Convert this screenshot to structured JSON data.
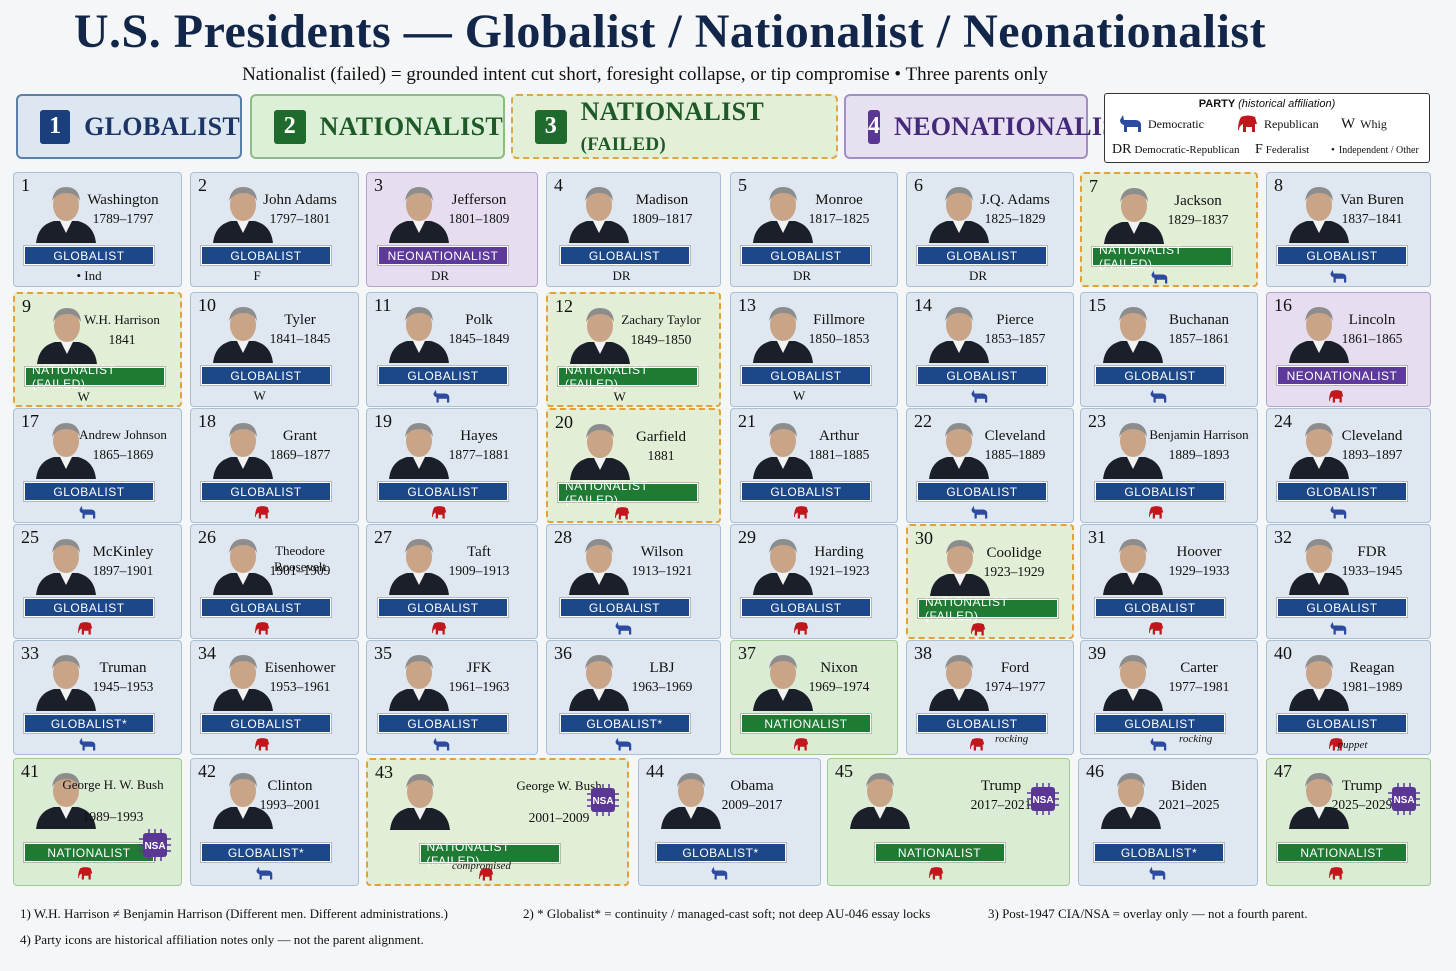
{
  "title": "U.S. Presidents — Globalist / Nationalist / Neonationalist",
  "subtitle": "Nationalist (failed) = grounded intent cut short, foresight collapse, or tip compromise  •  Three parents only",
  "categories": [
    {
      "num": "1",
      "label": "GLOBALIST"
    },
    {
      "num": "2",
      "label": "NATIONALIST"
    },
    {
      "num": "3",
      "label": "NATIONALIST",
      "label_small": "(FAILED)"
    },
    {
      "num": "4",
      "label": "NEONATIONALIST"
    }
  ],
  "legend": {
    "title": "PARTY",
    "subtitle": "(historical affiliation)",
    "democratic": "Democratic",
    "republican": "Republican",
    "whig_symbol": "W",
    "whig": "Whig",
    "dr_symbol": "DR",
    "dr": "Democratic-Republican",
    "federalist_symbol": "F",
    "federalist": "Federalist",
    "other": "Independent / Other"
  },
  "badges": {
    "glob": "GLOBALIST",
    "glob_star": "GLOBALIST*",
    "nat": "NATIONALIST",
    "natf": "NATIONALIST (FAILED)",
    "neo": "NEONATIONALIST"
  },
  "presidents": [
    {
      "n": "1",
      "name": "Washington",
      "years": "1789–1797",
      "cat": "glob",
      "party": "Ind",
      "party_text": "• Ind"
    },
    {
      "n": "2",
      "name": "John Adams",
      "years": "1797–1801",
      "cat": "glob",
      "party": "F",
      "party_text": "F"
    },
    {
      "n": "3",
      "name": "Jefferson",
      "years": "1801–1809",
      "cat": "neo",
      "party": "DR",
      "party_text": "DR"
    },
    {
      "n": "4",
      "name": "Madison",
      "years": "1809–1817",
      "cat": "glob",
      "party": "DR",
      "party_text": "DR"
    },
    {
      "n": "5",
      "name": "Monroe",
      "years": "1817–1825",
      "cat": "glob",
      "party": "DR",
      "party_text": "DR"
    },
    {
      "n": "6",
      "name": "J.Q. Adams",
      "years": "1825–1829",
      "cat": "glob",
      "party": "DR",
      "party_text": "DR"
    },
    {
      "n": "7",
      "name": "Jackson",
      "years": "1829–1837",
      "cat": "natf",
      "party": "D",
      "party_text": ""
    },
    {
      "n": "8",
      "name": "Van Buren",
      "years": "1837–1841",
      "cat": "glob",
      "party": "D",
      "party_text": ""
    },
    {
      "n": "9",
      "name": "W.H. Harrison",
      "years": "1841",
      "cat": "natf",
      "party": "W",
      "party_text": "W"
    },
    {
      "n": "10",
      "name": "Tyler",
      "years": "1841–1845",
      "cat": "glob",
      "party": "W",
      "party_text": "W"
    },
    {
      "n": "11",
      "name": "Polk",
      "years": "1845–1849",
      "cat": "glob",
      "party": "D",
      "party_text": ""
    },
    {
      "n": "12",
      "name": "Zachary Taylor",
      "years": "1849–1850",
      "cat": "natf",
      "party": "W",
      "party_text": "W"
    },
    {
      "n": "13",
      "name": "Fillmore",
      "years": "1850–1853",
      "cat": "glob",
      "party": "W",
      "party_text": "W"
    },
    {
      "n": "14",
      "name": "Pierce",
      "years": "1853–1857",
      "cat": "glob",
      "party": "D",
      "party_text": ""
    },
    {
      "n": "15",
      "name": "Buchanan",
      "years": "1857–1861",
      "cat": "glob",
      "party": "D",
      "party_text": ""
    },
    {
      "n": "16",
      "name": "Lincoln",
      "years": "1861–1865",
      "cat": "neo",
      "party": "R",
      "party_text": ""
    },
    {
      "n": "17",
      "name": "Andrew Johnson",
      "years": "1865–1869",
      "cat": "glob",
      "party": "D",
      "party_text": ""
    },
    {
      "n": "18",
      "name": "Grant",
      "years": "1869–1877",
      "cat": "glob",
      "party": "R",
      "party_text": ""
    },
    {
      "n": "19",
      "name": "Hayes",
      "years": "1877–1881",
      "cat": "glob",
      "party": "R",
      "party_text": ""
    },
    {
      "n": "20",
      "name": "Garfield",
      "years": "1881",
      "cat": "natf",
      "party": "R",
      "party_text": ""
    },
    {
      "n": "21",
      "name": "Arthur",
      "years": "1881–1885",
      "cat": "glob",
      "party": "R",
      "party_text": ""
    },
    {
      "n": "22",
      "name": "Cleveland",
      "years": "1885–1889",
      "cat": "glob",
      "party": "D",
      "party_text": ""
    },
    {
      "n": "23",
      "name": "Benjamin Harrison",
      "years": "1889–1893",
      "cat": "glob",
      "party": "R",
      "party_text": ""
    },
    {
      "n": "24",
      "name": "Cleveland",
      "years": "1893–1897",
      "cat": "glob",
      "party": "D",
      "party_text": ""
    },
    {
      "n": "25",
      "name": "McKinley",
      "years": "1897–1901",
      "cat": "glob",
      "party": "R",
      "party_text": ""
    },
    {
      "n": "26",
      "name": "Theodore Roosevelt",
      "years": "1901–1909",
      "cat": "glob",
      "party": "R",
      "party_text": ""
    },
    {
      "n": "27",
      "name": "Taft",
      "years": "1909–1913",
      "cat": "glob",
      "party": "R",
      "party_text": ""
    },
    {
      "n": "28",
      "name": "Wilson",
      "years": "1913–1921",
      "cat": "glob",
      "party": "D",
      "party_text": ""
    },
    {
      "n": "29",
      "name": "Harding",
      "years": "1921–1923",
      "cat": "glob",
      "party": "R",
      "party_text": ""
    },
    {
      "n": "30",
      "name": "Coolidge",
      "years": "1923–1929",
      "cat": "natf",
      "party": "R",
      "party_text": ""
    },
    {
      "n": "31",
      "name": "Hoover",
      "years": "1929–1933",
      "cat": "glob",
      "party": "R",
      "party_text": ""
    },
    {
      "n": "32",
      "name": "FDR",
      "years": "1933–1945",
      "cat": "glob",
      "party": "D",
      "party_text": ""
    },
    {
      "n": "33",
      "name": "Truman",
      "years": "1945–1953",
      "cat": "glob",
      "star": true,
      "party": "D",
      "party_text": ""
    },
    {
      "n": "34",
      "name": "Eisenhower",
      "years": "1953–1961",
      "cat": "glob",
      "party": "R",
      "party_text": ""
    },
    {
      "n": "35",
      "name": "JFK",
      "years": "1961–1963",
      "cat": "glob",
      "party": "D",
      "party_text": ""
    },
    {
      "n": "36",
      "name": "LBJ",
      "years": "1963–1969",
      "cat": "glob",
      "star": true,
      "party": "D",
      "party_text": ""
    },
    {
      "n": "37",
      "name": "Nixon",
      "years": "1969–1974",
      "cat": "nat",
      "party": "R",
      "party_text": ""
    },
    {
      "n": "38",
      "name": "Ford",
      "years": "1974–1977",
      "cat": "glob",
      "party": "R",
      "party_text": "",
      "note": "rocking"
    },
    {
      "n": "39",
      "name": "Carter",
      "years": "1977–1981",
      "cat": "glob",
      "party": "D",
      "party_text": "",
      "note": "rocking"
    },
    {
      "n": "40",
      "name": "Reagan",
      "years": "1981–1989",
      "cat": "glob",
      "party": "R",
      "party_text": "",
      "note": "puppet"
    },
    {
      "n": "41",
      "name": "George H. W. Bush",
      "years": "1989–1993",
      "cat": "nat",
      "party": "R",
      "party_text": "",
      "nsa": true
    },
    {
      "n": "42",
      "name": "Clinton",
      "years": "1993–2001",
      "cat": "glob",
      "star": true,
      "party": "D",
      "party_text": ""
    },
    {
      "n": "43",
      "name": "George W. Bush",
      "years": "2001–2009",
      "cat": "natf",
      "party": "R",
      "party_text": "",
      "nsa": true,
      "note": "compromised"
    },
    {
      "n": "44",
      "name": "Obama",
      "years": "2009–2017",
      "cat": "glob",
      "star": true,
      "party": "D",
      "party_text": ""
    },
    {
      "n": "45",
      "name": "Trump",
      "years": "2017–2021",
      "cat": "nat",
      "party": "R",
      "party_text": "",
      "nsa": true
    },
    {
      "n": "46",
      "name": "Biden",
      "years": "2021–2025",
      "cat": "glob",
      "star": true,
      "party": "D",
      "party_text": ""
    },
    {
      "n": "47",
      "name": "Trump",
      "years": "2025–2029",
      "cat": "nat",
      "party": "R",
      "party_text": "",
      "nsa": true
    }
  ],
  "nsa_label": "NSA",
  "footnotes": [
    "1)  W.H. Harrison ≠ Benjamin Harrison (Different men. Different administrations.)",
    "2)  * Globalist* = continuity / managed-cast soft; not deep AU-046 essay locks",
    "3)  Post-1947 CIA/NSA = overlay only — not a fourth parent.",
    "4)  Party icons are historical affiliation notes only — not the parent alignment."
  ],
  "colors": {
    "globalist": "#1c4788",
    "nationalist": "#1f7a33",
    "neonationalist": "#5d3a9a",
    "democratic_icon": "#2b4aa0",
    "republican_icon": "#c0161c",
    "failed_border": "#e3a13b"
  }
}
